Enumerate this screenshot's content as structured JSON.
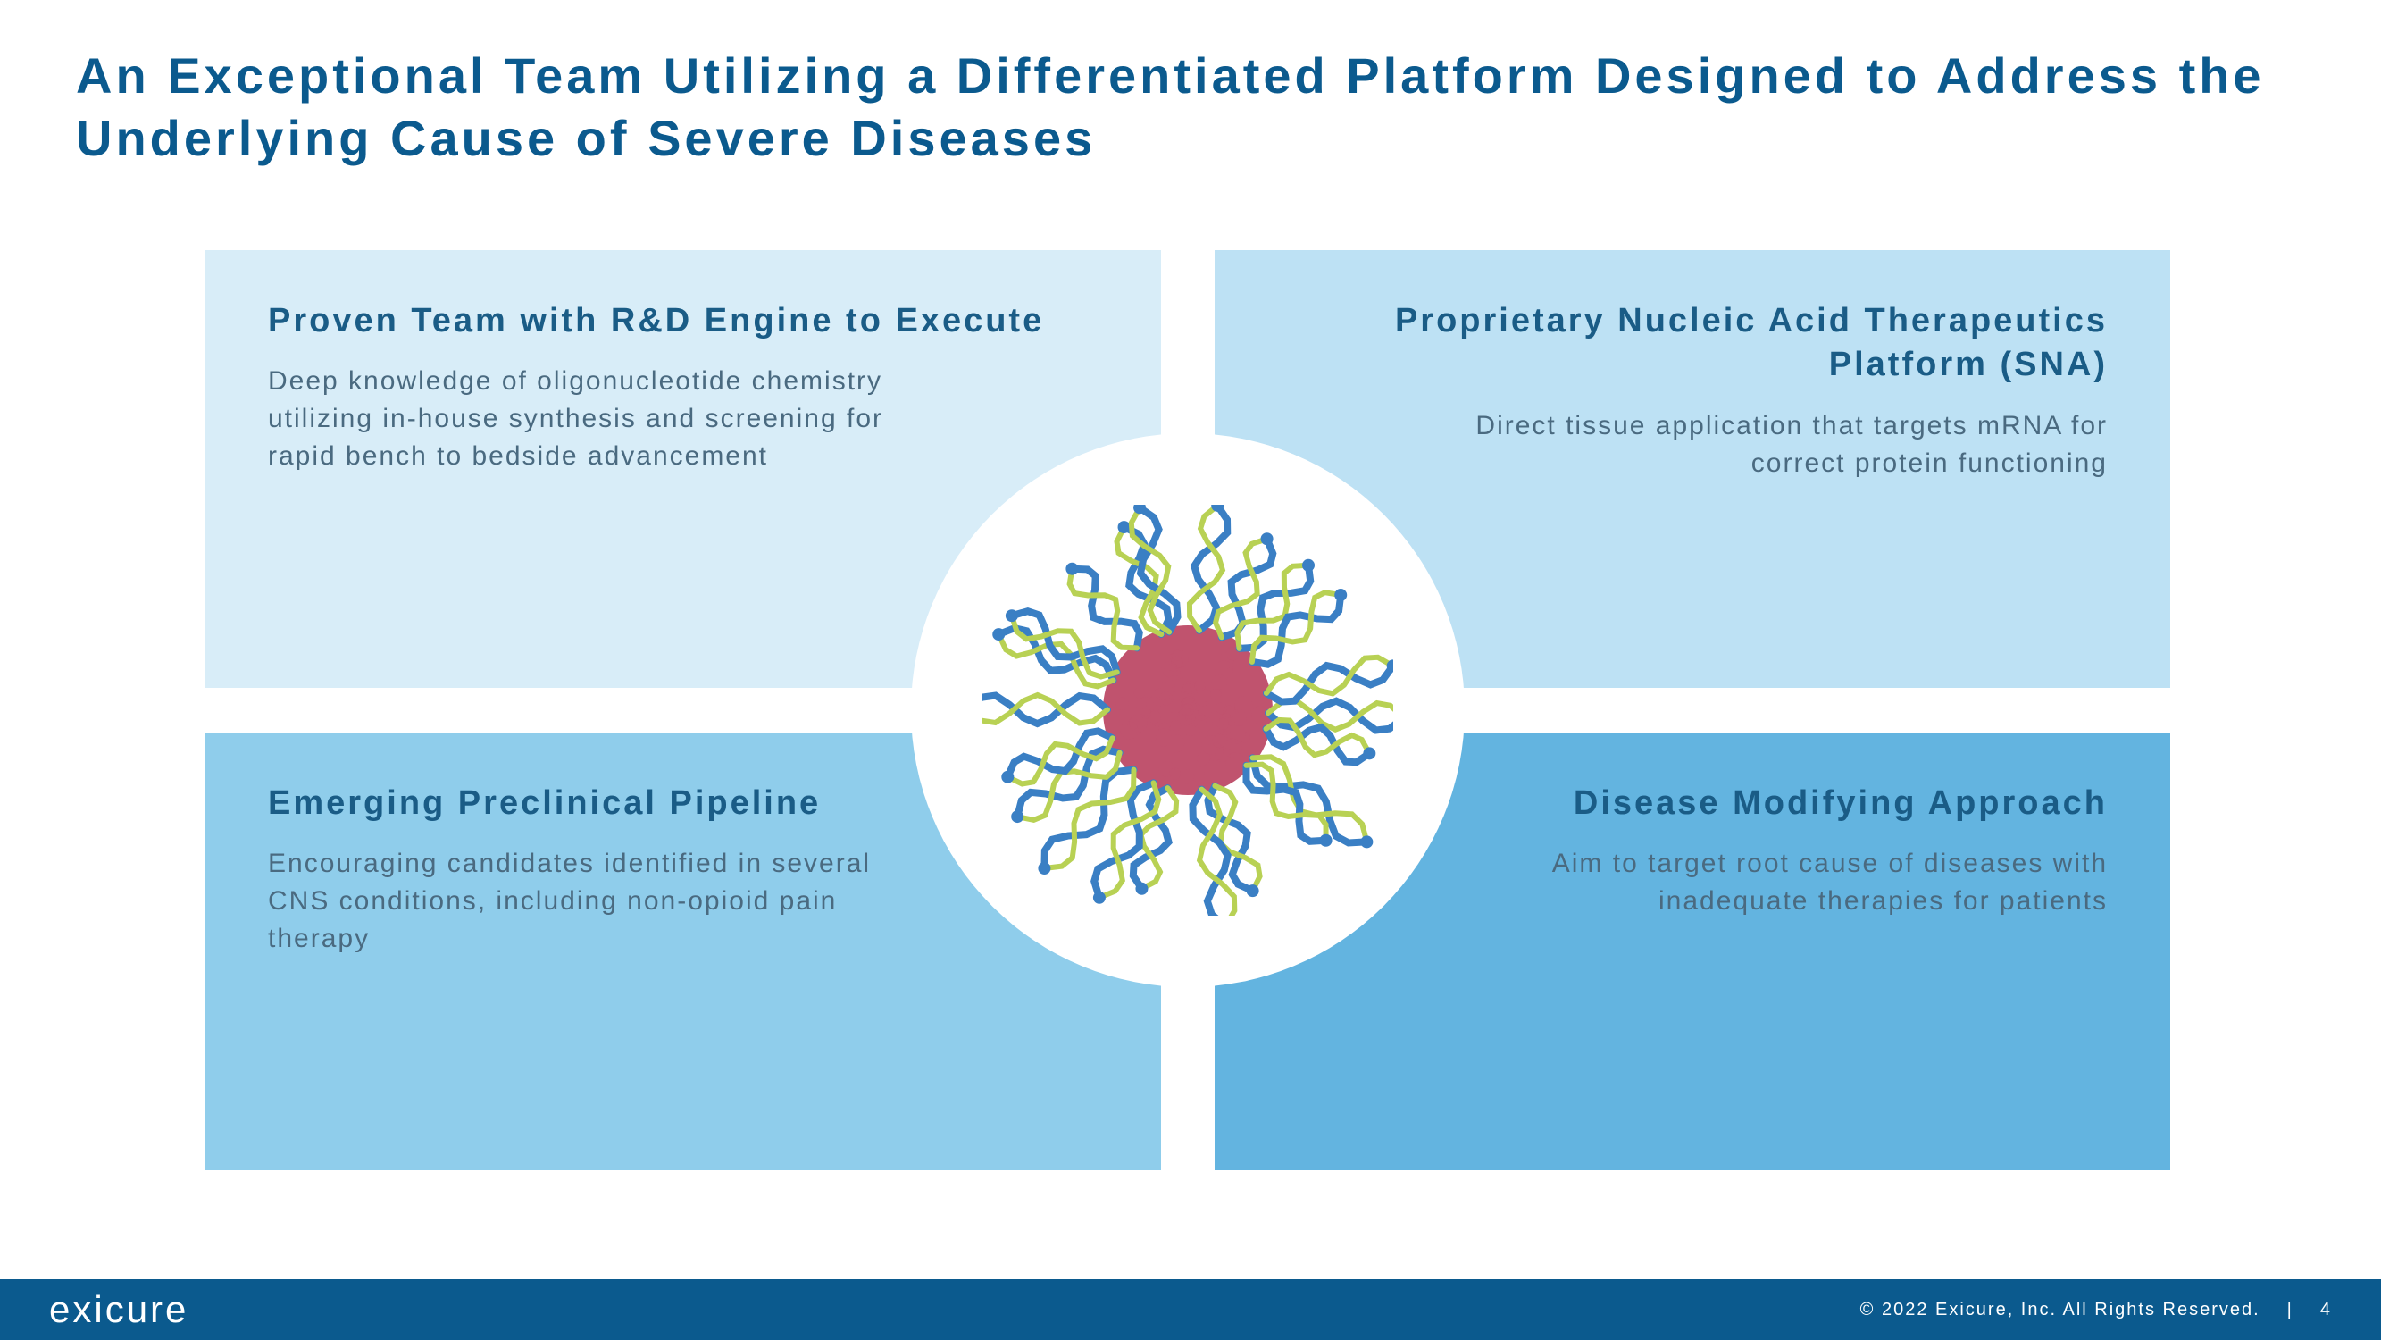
{
  "colors": {
    "title": "#0b5a8e",
    "quad_title": "#1a5c86",
    "quad_body": "#4a6a80",
    "tl_bg": "#d8edf8",
    "tr_bg": "#bde1f4",
    "bl_bg": "#8fcdeb",
    "br_bg": "#63b4e0",
    "footer_bg": "#0b5a8e",
    "footer_text": "#ffffff",
    "sna_core": "#c0536e",
    "sna_strand_a": "#3a7fc4",
    "sna_strand_b": "#b8d154"
  },
  "title": "An Exceptional Team Utilizing a Differentiated Platform Designed to Address the Underlying Cause of Severe Diseases",
  "quads": {
    "tl": {
      "title": "Proven Team with R&D Engine to Execute",
      "body": "Deep knowledge of oligonucleotide chemistry utilizing in-house synthesis and screening for rapid bench to bedside advancement"
    },
    "tr": {
      "title": "Proprietary Nucleic Acid Therapeutics Platform (SNA)",
      "body": "Direct tissue application that targets mRNA for correct protein functioning"
    },
    "bl": {
      "title": "Emerging Preclinical Pipeline",
      "body": "Encouraging candidates identified in several CNS conditions, including non-opioid pain therapy"
    },
    "br": {
      "title": "Disease Modifying Approach",
      "body": "Aim to target root cause of diseases with inadequate therapies for patients"
    }
  },
  "footer": {
    "logo": "exicure",
    "copyright": "© 2022 Exicure, Inc. All Rights Reserved.",
    "page": "4"
  },
  "typography": {
    "title_fontsize": 56,
    "quad_title_fontsize": 38,
    "quad_body_fontsize": 30,
    "footer_fontsize": 20,
    "logo_fontsize": 42,
    "letter_spacing_wide": 4
  },
  "layout": {
    "slide_w": 2666,
    "slide_h": 1500,
    "quad_w": 1070,
    "quad_h": 490,
    "quad_gap": 60,
    "circle_diameter": 620
  }
}
